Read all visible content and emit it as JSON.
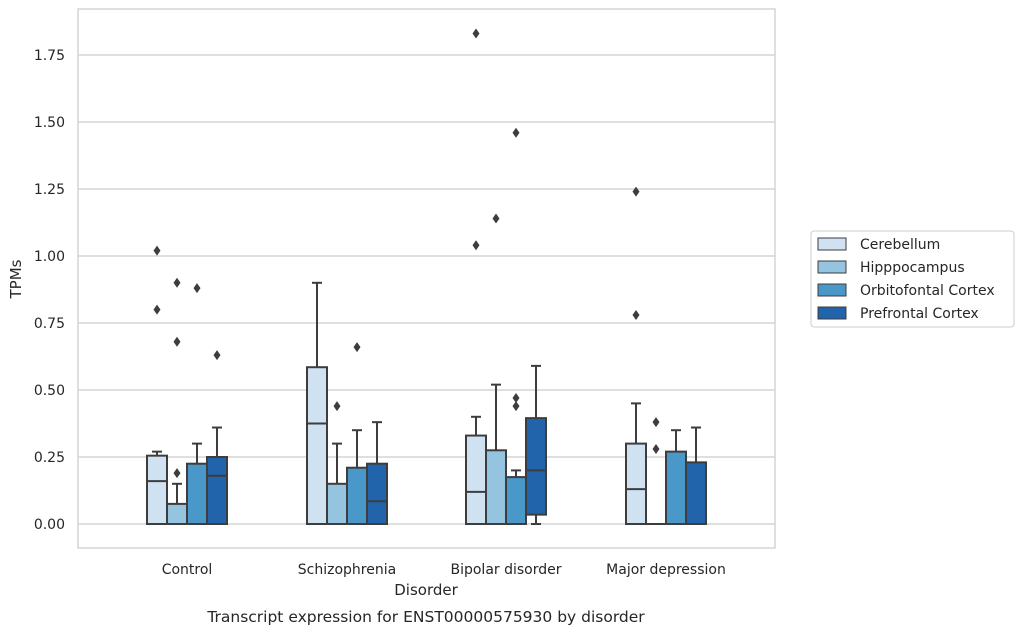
{
  "chart_data": {
    "type": "box",
    "caption": "Transcript expression for ENST00000575930 by disorder",
    "xlabel": "Disorder",
    "ylabel": "TPMs",
    "ylim": [
      -0.09,
      1.93
    ],
    "yticks": [
      0.0,
      0.25,
      0.5,
      0.75,
      1.0,
      1.25,
      1.5,
      1.75
    ],
    "ytick_labels": [
      "0.00",
      "0.25",
      "0.50",
      "0.75",
      "1.00",
      "1.25",
      "1.50",
      "1.75"
    ],
    "grid": true,
    "legend_position": "right",
    "categories": [
      "Control",
      "Schizophrenia",
      "Bipolar disorder",
      "Major depression"
    ],
    "series": [
      {
        "name": "Cerebellum",
        "color": "#d0e1f2",
        "boxes": [
          {
            "whislo": 0.0,
            "q1": 0.0,
            "med": 0.16,
            "q3": 0.255,
            "whishi": 0.27,
            "fliers": [
              0.8,
              1.02
            ]
          },
          {
            "whislo": 0.0,
            "q1": 0.0,
            "med": 0.375,
            "q3": 0.585,
            "whishi": 0.9,
            "fliers": []
          },
          {
            "whislo": 0.0,
            "q1": 0.0,
            "med": 0.12,
            "q3": 0.33,
            "whishi": 0.4,
            "fliers": [
              1.04,
              1.83
            ]
          },
          {
            "whislo": 0.0,
            "q1": 0.0,
            "med": 0.13,
            "q3": 0.3,
            "whishi": 0.45,
            "fliers": [
              0.78,
              1.24
            ]
          }
        ]
      },
      {
        "name": "Hipppocampus",
        "color": "#94c4df",
        "boxes": [
          {
            "whislo": 0.0,
            "q1": 0.0,
            "med": 0.0,
            "q3": 0.075,
            "whishi": 0.15,
            "fliers": [
              0.19,
              0.68,
              0.9
            ]
          },
          {
            "whislo": 0.0,
            "q1": 0.0,
            "med": 0.0,
            "q3": 0.15,
            "whishi": 0.3,
            "fliers": [
              0.44
            ]
          },
          {
            "whislo": 0.0,
            "q1": 0.0,
            "med": 0.0,
            "q3": 0.275,
            "whishi": 0.52,
            "fliers": [
              1.14
            ]
          },
          {
            "whislo": 0.0,
            "q1": 0.0,
            "med": 0.0,
            "q3": 0.0,
            "whishi": 0.0,
            "fliers": [
              0.28,
              0.38
            ]
          }
        ]
      },
      {
        "name": "Orbitofontal Cortex",
        "color": "#4a98c9",
        "boxes": [
          {
            "whislo": 0.0,
            "q1": 0.0,
            "med": 0.0,
            "q3": 0.225,
            "whishi": 0.3,
            "fliers": [
              0.88
            ]
          },
          {
            "whislo": 0.0,
            "q1": 0.0,
            "med": 0.0,
            "q3": 0.21,
            "whishi": 0.35,
            "fliers": [
              0.66
            ]
          },
          {
            "whislo": 0.0,
            "q1": 0.0,
            "med": 0.0,
            "q3": 0.175,
            "whishi": 0.2,
            "fliers": [
              0.44,
              0.47,
              1.46
            ]
          },
          {
            "whislo": 0.0,
            "q1": 0.0,
            "med": 0.0,
            "q3": 0.27,
            "whishi": 0.35,
            "fliers": []
          }
        ]
      },
      {
        "name": "Prefrontal Cortex",
        "color": "#2164ab",
        "boxes": [
          {
            "whislo": 0.0,
            "q1": 0.0,
            "med": 0.18,
            "q3": 0.25,
            "whishi": 0.36,
            "fliers": [
              0.63
            ]
          },
          {
            "whislo": 0.0,
            "q1": 0.0,
            "med": 0.085,
            "q3": 0.225,
            "whishi": 0.38,
            "fliers": []
          },
          {
            "whislo": 0.0,
            "q1": 0.035,
            "med": 0.2,
            "q3": 0.395,
            "whishi": 0.59,
            "fliers": []
          },
          {
            "whislo": 0.0,
            "q1": 0.0,
            "med": 0.0,
            "q3": 0.23,
            "whishi": 0.36,
            "fliers": []
          }
        ]
      }
    ]
  }
}
